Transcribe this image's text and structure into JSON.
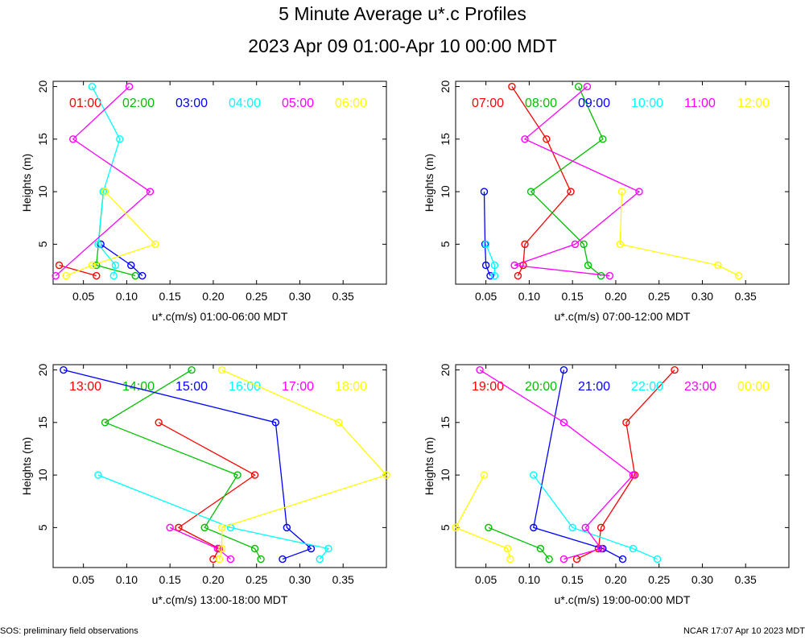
{
  "title": "5 Minute Average u*.c Profiles",
  "subtitle": "2023 Apr 09 01:00-Apr 10 00:00 MDT",
  "footer_left": "SOS: preliminary field observations",
  "footer_right": "NCAR 17:07 Apr 10 2023 MDT",
  "chart_data": [
    {
      "type": "line",
      "xlabel": "u*.c(m/s) 01:00-06:00 MDT",
      "ylabel": "Heights (m)",
      "xlim": [
        0.015,
        0.4
      ],
      "ylim": [
        1.2,
        20.5
      ],
      "xticks": [
        "0.05",
        "0.10",
        "0.15",
        "0.20",
        "0.25",
        "0.30",
        "0.35"
      ],
      "yticks": [
        "5",
        "10",
        "15",
        "20"
      ],
      "series": [
        {
          "name": "01:00",
          "color": "#ff0000",
          "points": [
            [
              0.065,
              2
            ],
            [
              0.022,
              3
            ]
          ]
        },
        {
          "name": "02:00",
          "color": "#00c000",
          "points": [
            [
              0.11,
              2
            ],
            [
              0.065,
              3
            ],
            [
              0.073,
              10
            ]
          ]
        },
        {
          "name": "03:00",
          "color": "#0000ff",
          "points": [
            [
              0.118,
              2
            ],
            [
              0.105,
              3
            ],
            [
              0.07,
              5
            ]
          ]
        },
        {
          "name": "04:00",
          "color": "#00ffff",
          "points": [
            [
              0.085,
              2
            ],
            [
              0.087,
              3
            ],
            [
              0.067,
              5
            ],
            [
              0.073,
              10
            ],
            [
              0.092,
              15
            ],
            [
              0.06,
              20
            ]
          ]
        },
        {
          "name": "05:00",
          "color": "#ff00ff",
          "points": [
            [
              0.018,
              2
            ],
            [
              0.127,
              10
            ],
            [
              0.038,
              15
            ],
            [
              0.103,
              20
            ]
          ]
        },
        {
          "name": "06:00",
          "color": "#ffff00",
          "points": [
            [
              0.03,
              2
            ],
            [
              0.06,
              3
            ],
            [
              0.133,
              5
            ],
            [
              0.075,
              10
            ]
          ]
        }
      ]
    },
    {
      "type": "line",
      "xlabel": "u*.c(m/s) 07:00-12:00 MDT",
      "ylabel": "Heights (m)",
      "xlim": [
        0.015,
        0.4
      ],
      "ylim": [
        1.2,
        20.5
      ],
      "xticks": [
        "0.05",
        "0.10",
        "0.15",
        "0.20",
        "0.25",
        "0.30",
        "0.35"
      ],
      "yticks": [
        "5",
        "10",
        "15",
        "20"
      ],
      "series": [
        {
          "name": "07:00",
          "color": "#ff0000",
          "points": [
            [
              0.087,
              2
            ],
            [
              0.093,
              3
            ],
            [
              0.095,
              5
            ],
            [
              0.148,
              10
            ],
            [
              0.12,
              15
            ],
            [
              0.08,
              20
            ]
          ]
        },
        {
          "name": "08:00",
          "color": "#00c000",
          "points": [
            [
              0.183,
              2
            ],
            [
              0.168,
              3
            ],
            [
              0.163,
              5
            ],
            [
              0.102,
              10
            ],
            [
              0.185,
              15
            ],
            [
              0.157,
              20
            ]
          ]
        },
        {
          "name": "09:00",
          "color": "#0000ff",
          "points": [
            [
              0.055,
              2
            ],
            [
              0.05,
              3
            ],
            [
              0.049,
              5
            ],
            [
              0.048,
              10
            ]
          ]
        },
        {
          "name": "10:00",
          "color": "#00ffff",
          "points": [
            [
              0.06,
              2
            ],
            [
              0.06,
              3
            ],
            [
              0.05,
              5
            ]
          ]
        },
        {
          "name": "11:00",
          "color": "#ff00ff",
          "points": [
            [
              0.193,
              2
            ],
            [
              0.083,
              3
            ],
            [
              0.153,
              5
            ],
            [
              0.227,
              10
            ],
            [
              0.095,
              15
            ],
            [
              0.167,
              20
            ]
          ]
        },
        {
          "name": "12:00",
          "color": "#ffff00",
          "points": [
            [
              0.342,
              2
            ],
            [
              0.318,
              3
            ],
            [
              0.205,
              5
            ],
            [
              0.207,
              10
            ]
          ]
        }
      ]
    },
    {
      "type": "line",
      "xlabel": "u*.c(m/s) 13:00-18:00 MDT",
      "ylabel": "Heights (m)",
      "xlim": [
        0.015,
        0.4
      ],
      "ylim": [
        1.2,
        20.5
      ],
      "xticks": [
        "0.05",
        "0.10",
        "0.15",
        "0.20",
        "0.25",
        "0.30",
        "0.35"
      ],
      "yticks": [
        "5",
        "10",
        "15",
        "20"
      ],
      "series": [
        {
          "name": "13:00",
          "color": "#ff0000",
          "points": [
            [
              0.2,
              2
            ],
            [
              0.207,
              3
            ],
            [
              0.16,
              5
            ],
            [
              0.248,
              10
            ],
            [
              0.137,
              15
            ]
          ]
        },
        {
          "name": "14:00",
          "color": "#00c000",
          "points": [
            [
              0.255,
              2
            ],
            [
              0.248,
              3
            ],
            [
              0.19,
              5
            ],
            [
              0.228,
              10
            ],
            [
              0.075,
              15
            ],
            [
              0.175,
              20
            ]
          ]
        },
        {
          "name": "15:00",
          "color": "#0000ff",
          "points": [
            [
              0.28,
              2
            ],
            [
              0.313,
              3
            ],
            [
              0.285,
              5
            ],
            [
              0.272,
              15
            ],
            [
              0.027,
              20
            ]
          ]
        },
        {
          "name": "16:00",
          "color": "#00ffff",
          "points": [
            [
              0.323,
              2
            ],
            [
              0.333,
              3
            ],
            [
              0.22,
              5
            ],
            [
              0.067,
              10
            ]
          ]
        },
        {
          "name": "17:00",
          "color": "#ff00ff",
          "points": [
            [
              0.22,
              2
            ],
            [
              0.205,
              3
            ],
            [
              0.15,
              5
            ]
          ]
        },
        {
          "name": "18:00",
          "color": "#ffff00",
          "points": [
            [
              0.207,
              2
            ],
            [
              0.21,
              3
            ],
            [
              0.21,
              5
            ],
            [
              0.4,
              10
            ],
            [
              0.345,
              15
            ],
            [
              0.21,
              20
            ]
          ]
        }
      ]
    },
    {
      "type": "line",
      "xlabel": "u*.c(m/s) 19:00-00:00 MDT",
      "ylabel": "Heights (m)",
      "xlim": [
        0.015,
        0.4
      ],
      "ylim": [
        1.2,
        20.5
      ],
      "xticks": [
        "0.05",
        "0.10",
        "0.15",
        "0.20",
        "0.25",
        "0.30",
        "0.35"
      ],
      "yticks": [
        "5",
        "10",
        "15",
        "20"
      ],
      "series": [
        {
          "name": "19:00",
          "color": "#ff0000",
          "points": [
            [
              0.155,
              2
            ],
            [
              0.18,
              3
            ],
            [
              0.183,
              5
            ],
            [
              0.222,
              10
            ],
            [
              0.212,
              15
            ],
            [
              0.268,
              20
            ]
          ]
        },
        {
          "name": "20:00",
          "color": "#00c000",
          "points": [
            [
              0.123,
              2
            ],
            [
              0.113,
              3
            ],
            [
              0.053,
              5
            ]
          ]
        },
        {
          "name": "21:00",
          "color": "#0000ff",
          "points": [
            [
              0.208,
              2
            ],
            [
              0.185,
              3
            ],
            [
              0.105,
              5
            ],
            [
              0.14,
              20
            ]
          ]
        },
        {
          "name": "22:00",
          "color": "#00ffff",
          "points": [
            [
              0.248,
              2
            ],
            [
              0.22,
              3
            ],
            [
              0.15,
              5
            ],
            [
              0.105,
              10
            ]
          ]
        },
        {
          "name": "23:00",
          "color": "#ff00ff",
          "points": [
            [
              0.14,
              2
            ],
            [
              0.183,
              3
            ],
            [
              0.165,
              5
            ],
            [
              0.22,
              10
            ],
            [
              0.14,
              15
            ],
            [
              0.043,
              20
            ]
          ]
        },
        {
          "name": "00:00",
          "color": "#ffff00",
          "points": [
            [
              0.078,
              2
            ],
            [
              0.075,
              3
            ],
            [
              0.015,
              5
            ],
            [
              0.048,
              10
            ]
          ]
        }
      ]
    }
  ]
}
